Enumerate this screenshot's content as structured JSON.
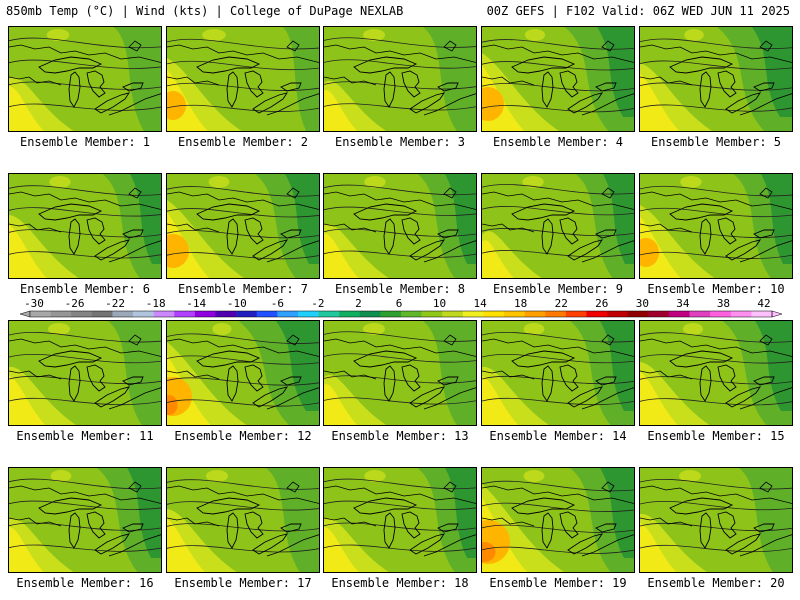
{
  "header": {
    "left": "850mb Temp (°C) | Wind (kts) | College of DuPage NEXLAB",
    "right": "00Z GEFS | F102 Valid: 06Z WED JUN 11 2025"
  },
  "members": [
    {
      "label": "Ensemble Member: 1",
      "warm": 0.55,
      "cool": 0.45
    },
    {
      "label": "Ensemble Member: 2",
      "warm": 0.75,
      "cool": 0.35
    },
    {
      "label": "Ensemble Member: 3",
      "warm": 0.5,
      "cool": 0.5
    },
    {
      "label": "Ensemble Member: 4",
      "warm": 0.8,
      "cool": 0.65
    },
    {
      "label": "Ensemble Member: 5",
      "warm": 0.7,
      "cool": 0.7
    },
    {
      "label": "Ensemble Member: 6",
      "warm": 0.65,
      "cool": 0.55
    },
    {
      "label": "Ensemble Member: 7",
      "warm": 0.8,
      "cool": 0.6
    },
    {
      "label": "Ensemble Member: 8",
      "warm": 0.55,
      "cool": 0.55
    },
    {
      "label": "Ensemble Member: 9",
      "warm": 0.45,
      "cool": 0.55
    },
    {
      "label": "Ensemble Member: 10",
      "warm": 0.75,
      "cool": 0.55
    },
    {
      "label": "Ensemble Member: 11",
      "warm": 0.6,
      "cool": 0.5
    },
    {
      "label": "Ensemble Member: 12",
      "warm": 0.85,
      "cool": 0.75
    },
    {
      "label": "Ensemble Member: 13",
      "warm": 0.5,
      "cool": 0.5
    },
    {
      "label": "Ensemble Member: 14",
      "warm": 0.6,
      "cool": 0.6
    },
    {
      "label": "Ensemble Member: 15",
      "warm": 0.65,
      "cool": 0.65
    },
    {
      "label": "Ensemble Member: 16",
      "warm": 0.55,
      "cool": 0.6
    },
    {
      "label": "Ensemble Member: 17",
      "warm": 0.65,
      "cool": 0.5
    },
    {
      "label": "Ensemble Member: 18",
      "warm": 0.55,
      "cool": 0.55
    },
    {
      "label": "Ensemble Member: 19",
      "warm": 0.9,
      "cool": 0.6
    },
    {
      "label": "Ensemble Member: 20",
      "warm": 0.6,
      "cool": 0.5
    }
  ],
  "colorbar": {
    "tick_labels": [
      "-30",
      "-26",
      "-22",
      "-18",
      "-14",
      "-10",
      "-6",
      "-2",
      "2",
      "6",
      "10",
      "14",
      "18",
      "22",
      "26",
      "30",
      "34",
      "38",
      "42"
    ],
    "colors": [
      "#a8a8a8",
      "#969696",
      "#848484",
      "#747474",
      "#9aa8b8",
      "#b0c4de",
      "#cc88ff",
      "#b040ff",
      "#9000e0",
      "#5000b0",
      "#2020c0",
      "#2050ff",
      "#30a0ff",
      "#20d0ff",
      "#20c8a0",
      "#10b060",
      "#109050",
      "#30a030",
      "#60b828",
      "#90c81a",
      "#c0d820",
      "#f0f020",
      "#ffe000",
      "#ffc400",
      "#ffa000",
      "#ff7a00",
      "#ff4000",
      "#f00000",
      "#c00000",
      "#900000",
      "#a00030",
      "#c00080",
      "#e040c0",
      "#ff60e0",
      "#ff90f0",
      "#ffc0ff"
    ]
  },
  "map_colors": {
    "yellow": "#f2ea16",
    "yellow_green": "#c9df1c",
    "light_green": "#8ec41a",
    "green": "#5fb028",
    "dark_green": "#2e9630",
    "orange": "#ffb400",
    "dark_orange": "#ff8a00"
  }
}
